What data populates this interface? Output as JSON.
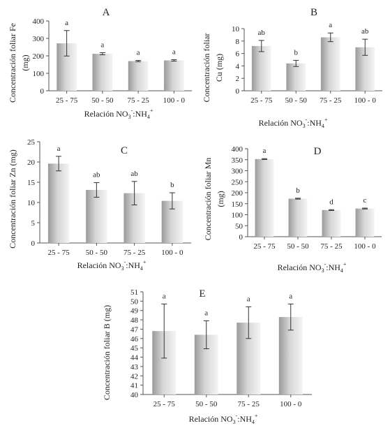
{
  "chart_data": [
    {
      "type": "bar",
      "title": "A",
      "ylabel_lines": [
        "Concentración foliar Fe",
        "(mg)"
      ],
      "xlabel": {
        "prefix": "Relación NO",
        "sub1": "3",
        "sup1": "-",
        "mid": ":NH",
        "sub2": "4",
        "sup2": "+"
      },
      "categories": [
        "25 - 75",
        "50 - 50",
        "75 - 25",
        "100 - 0"
      ],
      "values": [
        272,
        212,
        170,
        174
      ],
      "errors": [
        73,
        6,
        4,
        4
      ],
      "letters": [
        "a",
        "a",
        "a",
        "a"
      ],
      "ylim": [
        0,
        400
      ],
      "yticks": [
        "0",
        "100",
        "200",
        "300",
        "400"
      ]
    },
    {
      "type": "bar",
      "title": "B",
      "ylabel_lines": [
        "Concentración foliar",
        "Cu  (mg)"
      ],
      "xlabel": {
        "prefix": "Relación NO",
        "sub1": "3",
        "sup1": "-",
        "mid": ":NH",
        "sub2": "4",
        "sup2": "+"
      },
      "categories": [
        "25 - 75",
        "50 - 50",
        "75 - 25",
        "100 - 0"
      ],
      "values": [
        7.2,
        4.4,
        8.6,
        7.0
      ],
      "errors": [
        0.9,
        0.5,
        0.7,
        1.3
      ],
      "letters": [
        "ab",
        "b",
        "a",
        "ab"
      ],
      "ylim": [
        0,
        10
      ],
      "yticks": [
        "0",
        "2",
        "4",
        "6",
        "8",
        "10"
      ]
    },
    {
      "type": "bar",
      "title": "C",
      "ylabel_lines": [
        "Concentración foliar Zn (mg)"
      ],
      "xlabel": {
        "prefix": "Relación NO",
        "sub1": "3",
        "sup1": "-",
        "mid": ":NH",
        "sub2": "4",
        "sup2": "+"
      },
      "categories": [
        "25 - 75",
        "50 - 50",
        "75 - 25",
        "100 - 0"
      ],
      "values": [
        19.6,
        13.1,
        12.3,
        10.4
      ],
      "errors": [
        1.8,
        1.8,
        2.9,
        2.0
      ],
      "letters": [
        "a",
        "ab",
        "ab",
        "b"
      ],
      "ylim": [
        0,
        25
      ],
      "yticks": [
        "0",
        "5",
        "10",
        "15",
        "20",
        "25"
      ]
    },
    {
      "type": "bar",
      "title": "D",
      "ylabel_lines": [
        "Concentración foliar Mn",
        "(mg)"
      ],
      "xlabel": {
        "prefix": "Relación NO",
        "sub1": "3",
        "sup1": "-",
        "mid": ":NH",
        "sub2": "4",
        "sup2": "+"
      },
      "categories": [
        "25 - 75",
        "50 - 50",
        "75 - 25",
        "100 - 0"
      ],
      "values": [
        353,
        173,
        121,
        128
      ],
      "errors": [
        2,
        2,
        2,
        2
      ],
      "letters": [
        "a",
        "b",
        "d",
        "c"
      ],
      "ylim": [
        0,
        400
      ],
      "yticks": [
        "0",
        "50",
        "100",
        "150",
        "200",
        "250",
        "300",
        "350",
        "400"
      ]
    },
    {
      "type": "bar",
      "title": "E",
      "ylabel_lines": [
        "Concentración foliar B (mg)"
      ],
      "xlabel": {
        "prefix": "Relación NO",
        "sub1": "3",
        "sup1": "-",
        "mid": ":NH",
        "sub2": "4",
        "sup2": "+"
      },
      "categories": [
        "25 - 75",
        "50 - 50",
        "75 - 25",
        "100 - 0"
      ],
      "values": [
        46.8,
        46.4,
        47.7,
        48.3
      ],
      "errors": [
        2.9,
        1.5,
        1.7,
        1.4
      ],
      "letters": [
        "a",
        "a",
        "a",
        "a"
      ],
      "ylim": [
        40,
        51
      ],
      "yticks": [
        "40",
        "41",
        "42",
        "43",
        "44",
        "45",
        "46",
        "47",
        "48",
        "49",
        "50",
        "51"
      ]
    }
  ]
}
